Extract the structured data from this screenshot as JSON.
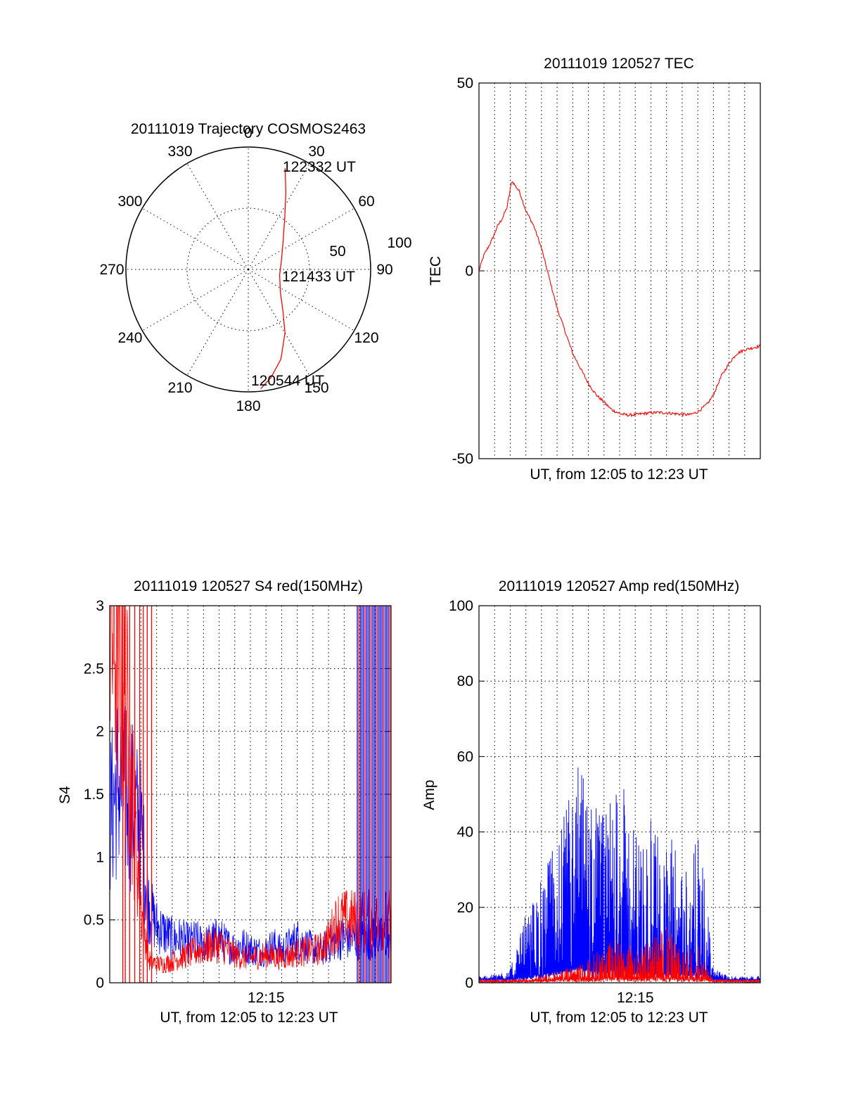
{
  "chart_data": [
    {
      "type": "polar",
      "title": "20111019 Trajectory COSMOS2463",
      "azimuth_labels": [
        "0",
        "30",
        "60",
        "90",
        "120",
        "150",
        "180",
        "210",
        "240",
        "270",
        "300",
        "330"
      ],
      "radial_labels": [
        "50",
        "100"
      ],
      "grid": true,
      "series": [
        {
          "color": "#ff0000",
          "points": [
            {
              "az": 174,
              "r": 98
            },
            {
              "az": 168,
              "r": 90
            },
            {
              "az": 160,
              "r": 78
            },
            {
              "az": 150,
              "r": 60
            },
            {
              "az": 140,
              "r": 44
            },
            {
              "az": 125,
              "r": 32
            },
            {
              "az": 100,
              "r": 26
            },
            {
              "az": 75,
              "r": 28
            },
            {
              "az": 52,
              "r": 36
            },
            {
              "az": 35,
              "r": 52
            },
            {
              "az": 26,
              "r": 70
            },
            {
              "az": 20,
              "r": 88
            }
          ]
        }
      ],
      "annotations": [
        "122332 UT",
        "121433 UT",
        "120544 UT"
      ]
    },
    {
      "type": "line",
      "title": "20111019 120527 TEC",
      "xlabel": "UT, from 12:05 to 12:23 UT",
      "ylabel": "TEC",
      "xlim": [
        12.0833,
        12.3833
      ],
      "ylim": [
        -50,
        50
      ],
      "yticks": [
        "-50",
        "0",
        "50"
      ],
      "grid": true,
      "series": [
        {
          "color": "#ff0000",
          "x": [
            12.0833,
            12.0883,
            12.0967,
            12.1033,
            12.1083,
            12.1133,
            12.1183,
            12.1267,
            12.1333,
            12.1417,
            12.15,
            12.1583,
            12.1667,
            12.175,
            12.1833,
            12.1917,
            12.2,
            12.2083,
            12.2167,
            12.225,
            12.2333,
            12.2417,
            12.25,
            12.2583,
            12.2667,
            12.275,
            12.2833,
            12.2917,
            12.3,
            12.3083,
            12.3167,
            12.3267,
            12.3333,
            12.3417,
            12.3517,
            12.3583,
            12.3667,
            12.3833
          ],
          "values": [
            0,
            4,
            8,
            12,
            14,
            17,
            24,
            21,
            16,
            12,
            6,
            -2,
            -10,
            -16,
            -22,
            -26,
            -30,
            -33,
            -35,
            -37,
            -38,
            -38.4,
            -38.3,
            -38,
            -37.8,
            -37.7,
            -37.8,
            -38,
            -38.2,
            -38.3,
            -37.5,
            -35.5,
            -33,
            -28,
            -24,
            -22,
            -21,
            -20
          ]
        }
      ]
    },
    {
      "type": "line",
      "title": "20111019 120527 S4 red(150MHz)",
      "xlabel": "UT, from 12:05 to 12:23 UT",
      "ylabel": "S4",
      "xlim": [
        12.0833,
        12.3833
      ],
      "ylim": [
        0,
        3
      ],
      "xticks": [
        {
          "value": 12.25,
          "label": "12:15"
        }
      ],
      "yticks": [
        "0",
        "0.5",
        "1",
        "1.5",
        "2",
        "2.5",
        "3"
      ],
      "grid": true,
      "series": [
        {
          "color": "#0000ff",
          "x": [
            12.0833,
            12.0917,
            12.1,
            12.1083,
            12.1167,
            12.125,
            12.1333,
            12.1417,
            12.15,
            12.1583,
            12.1667,
            12.175,
            12.1833,
            12.1917,
            12.2,
            12.2083,
            12.2167,
            12.225,
            12.2333,
            12.2417,
            12.25,
            12.2583,
            12.2667,
            12.275,
            12.2833,
            12.2917,
            12.3,
            12.3083,
            12.3167,
            12.3267
          ],
          "values": [
            1.3,
            1.6,
            1.5,
            1.4,
            1.2,
            0.6,
            0.45,
            0.4,
            0.35,
            0.35,
            0.32,
            0.34,
            0.3,
            0.33,
            0.36,
            0.3,
            0.28,
            0.3,
            0.27,
            0.25,
            0.26,
            0.3,
            0.25,
            0.3,
            0.35,
            0.3,
            0.27,
            0.25,
            0.3,
            0.35
          ]
        },
        {
          "color": "#ff0000",
          "x": [
            12.0833,
            12.0917,
            12.1,
            12.1083,
            12.1167,
            12.125,
            12.1333,
            12.1417,
            12.15,
            12.1583,
            12.1667,
            12.175,
            12.1833,
            12.1917,
            12.2,
            12.2083,
            12.2167,
            12.225,
            12.2333,
            12.2417,
            12.25,
            12.2583,
            12.2667,
            12.275,
            12.2833,
            12.2917,
            12.3,
            12.3083,
            12.3167,
            12.3267
          ],
          "values": [
            3.0,
            2.6,
            2.2,
            1.4,
            0.6,
            0.18,
            0.15,
            0.15,
            0.17,
            0.2,
            0.22,
            0.25,
            0.27,
            0.3,
            0.3,
            0.27,
            0.22,
            0.2,
            0.2,
            0.21,
            0.22,
            0.21,
            0.2,
            0.22,
            0.24,
            0.25,
            0.26,
            0.27,
            0.35,
            0.5
          ]
        }
      ]
    },
    {
      "type": "line",
      "title": "20111019 120527 Amp red(150MHz)",
      "xlabel": "UT, from 12:05 to 12:23 UT",
      "ylabel": "Amp",
      "xlim": [
        12.0833,
        12.3833
      ],
      "ylim": [
        0,
        100
      ],
      "xticks": [
        {
          "value": 12.25,
          "label": "12:15"
        }
      ],
      "yticks": [
        "0",
        "20",
        "40",
        "60",
        "80",
        "100"
      ],
      "grid": true,
      "series": [
        {
          "color": "#0000ff",
          "x": [
            12.0833,
            12.1,
            12.1167,
            12.125,
            12.1333,
            12.1417,
            12.15,
            12.1583,
            12.1667,
            12.175,
            12.1833,
            12.1917,
            12.2,
            12.2083,
            12.2167,
            12.225,
            12.2333,
            12.2417,
            12.25,
            12.2583,
            12.2667,
            12.275,
            12.2833,
            12.2917,
            12.3,
            12.3083,
            12.3167,
            12.3267,
            12.3333,
            12.35,
            12.3667,
            12.3833
          ],
          "values": [
            1,
            1.5,
            3,
            10,
            18,
            22,
            28,
            33,
            40,
            45,
            55,
            60,
            52,
            48,
            45,
            50,
            55,
            48,
            42,
            38,
            44,
            40,
            36,
            38,
            35,
            32,
            38,
            22,
            3,
            1,
            1,
            1
          ]
        },
        {
          "color": "#ff0000",
          "x": [
            12.0833,
            12.1,
            12.1167,
            12.1333,
            12.15,
            12.1667,
            12.1833,
            12.2,
            12.2167,
            12.2333,
            12.25,
            12.2667,
            12.2833,
            12.3,
            12.3167,
            12.3267,
            12.3333,
            12.3833
          ],
          "values": [
            0,
            0,
            0,
            1,
            2,
            3,
            4,
            6,
            10,
            14,
            8,
            12,
            15,
            8,
            10,
            4,
            0.5,
            0
          ]
        }
      ]
    }
  ]
}
